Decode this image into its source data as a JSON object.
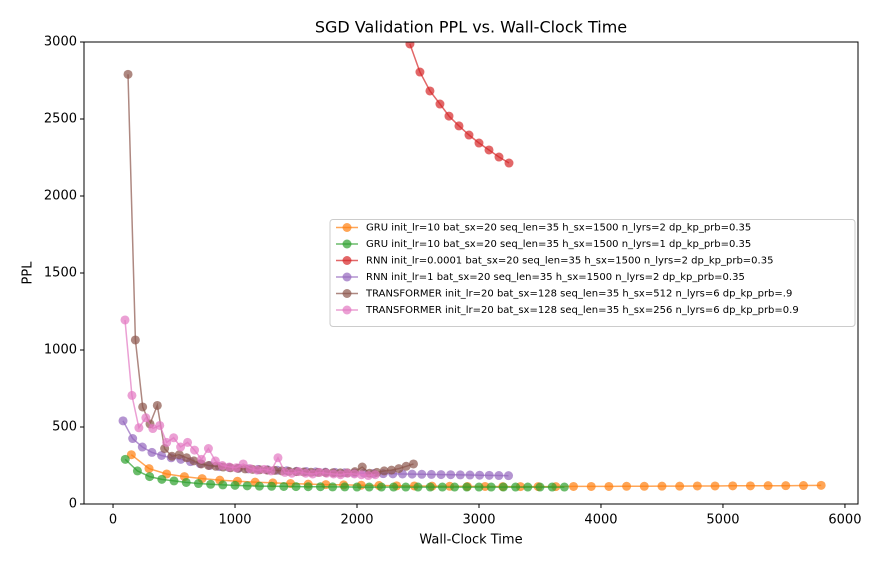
{
  "chart_data": {
    "type": "line",
    "title": "SGD Validation PPL vs. Wall-Clock Time",
    "x_label": "Wall-Clock Time",
    "y_label": "PPL",
    "xlim": [
      -238,
      6107
    ],
    "ylim": [
      0,
      3000
    ],
    "xticks": [
      0,
      1000,
      2000,
      3000,
      4000,
      5000,
      6000
    ],
    "yticks": [
      0,
      500,
      1000,
      1500,
      2000,
      2500,
      3000
    ],
    "legend": "center right",
    "series": [
      {
        "name": "GRU init_lr=10 bat_sx=20 seq_len=35 h_sx=1500 n_lyrs=2 dp_kp_prb=0.35",
        "color": "#ff7f0e",
        "x": [
          150,
          295,
          440,
          585,
          730,
          875,
          1020,
          1165,
          1310,
          1455,
          1600,
          1745,
          1890,
          2035,
          2180,
          2325,
          2470,
          2615,
          2760,
          2905,
          3050,
          3195,
          3340,
          3485,
          3630,
          3775,
          3920,
          4065,
          4210,
          4355,
          4500,
          4645,
          4790,
          4935,
          5080,
          5225,
          5370,
          5515,
          5660,
          5805
        ],
        "values": [
          320,
          230,
          195,
          178,
          165,
          155,
          148,
          142,
          137,
          133,
          129,
          126,
          124,
          122,
          120,
          118,
          117,
          116,
          115,
          114,
          114,
          113,
          113,
          113,
          113,
          114,
          114,
          114,
          115,
          115,
          116,
          116,
          117,
          117,
          118,
          118,
          119,
          119,
          120,
          121
        ]
      },
      {
        "name": "GRU init_lr=10 bat_sx=20 seq_len=35 h_sx=1500 n_lyrs=1 dp_kp_prb=0.35",
        "color": "#2ca02c",
        "x": [
          100,
          200,
          300,
          400,
          500,
          600,
          700,
          800,
          900,
          1000,
          1100,
          1200,
          1300,
          1400,
          1500,
          1600,
          1700,
          1800,
          1900,
          2000,
          2100,
          2200,
          2300,
          2400,
          2500,
          2600,
          2700,
          2800,
          2900,
          3000,
          3100,
          3200,
          3300,
          3400,
          3500,
          3600,
          3700
        ],
        "values": [
          290,
          215,
          178,
          160,
          150,
          140,
          133,
          128,
          124,
          121,
          118,
          116,
          115,
          114,
          113,
          112,
          112,
          111,
          111,
          110,
          110,
          110,
          110,
          110,
          110,
          110,
          110,
          110,
          110,
          110,
          110,
          110,
          110,
          110,
          110,
          110,
          110
        ]
      },
      {
        "name": "RNN init_lr=0.0001 bat_sx=20 seq_len=35 h_sx=1500 n_lyrs=2 dp_kp_prb=0.35",
        "color": "#d62728",
        "x": [
          2434,
          2516,
          2598,
          2680,
          2754,
          2836,
          2918,
          3000,
          3082,
          3164,
          3246
        ],
        "values": [
          2987,
          2805,
          2682,
          2597,
          2519,
          2455,
          2396,
          2344,
          2299,
          2253,
          2214
        ]
      },
      {
        "name": "RNN init_lr=1 bat_sx=20 seq_len=35 h_sx=1500 n_lyrs=2 dp_kp_prb=0.35",
        "color": "#9467bd",
        "x": [
          82,
          161,
          240,
          319,
          398,
          477,
          556,
          635,
          714,
          793,
          872,
          951,
          1030,
          1109,
          1188,
          1267,
          1346,
          1425,
          1504,
          1583,
          1662,
          1741,
          1820,
          1899,
          1978,
          2057,
          2136,
          2215,
          2294,
          2373,
          2452,
          2531,
          2610,
          2689,
          2768,
          2847,
          2926,
          3005,
          3084,
          3163,
          3242
        ],
        "values": [
          540,
          425,
          370,
          335,
          315,
          300,
          290,
          275,
          262,
          250,
          243,
          237,
          232,
          228,
          225,
          222,
          219,
          216,
          213,
          211,
          209,
          207,
          205,
          203,
          201,
          200,
          198,
          197,
          196,
          195,
          194,
          193,
          192,
          191,
          190,
          189,
          188,
          187,
          186,
          185,
          184
        ]
      },
      {
        "name": "TRANSFORMER init_lr=20 bat_sx=128 seq_len=35 h_sx=512 n_lyrs=6 dp_kp_prb=.9",
        "color": "#8c564b",
        "x": [
          123,
          183,
          243,
          303,
          363,
          423,
          483,
          543,
          603,
          663,
          723,
          783,
          843,
          903,
          963,
          1023,
          1083,
          1143,
          1203,
          1263,
          1323,
          1383,
          1443,
          1503,
          1563,
          1623,
          1683,
          1743,
          1803,
          1863,
          1923,
          1983,
          2043,
          2103,
          2163,
          2223,
          2283,
          2343,
          2403,
          2463
        ],
        "values": [
          2790,
          1065,
          630,
          520,
          640,
          360,
          310,
          320,
          300,
          280,
          260,
          250,
          245,
          240,
          235,
          232,
          228,
          225,
          222,
          220,
          218,
          215,
          212,
          210,
          208,
          206,
          205,
          204,
          203,
          202,
          202,
          210,
          240,
          200,
          205,
          215,
          220,
          230,
          245,
          260
        ]
      },
      {
        "name": "TRANSFORMER init_lr=20 bat_sx=128 seq_len=35 h_sx=256 n_lyrs=6 dp_kp_prb=0.9",
        "color": "#e377c2",
        "x": [
          98,
          155,
          212,
          269,
          326,
          383,
          440,
          497,
          554,
          611,
          668,
          725,
          782,
          839,
          896,
          953,
          1010,
          1067,
          1124,
          1181,
          1238,
          1295,
          1352,
          1409,
          1466,
          1523,
          1580,
          1637,
          1694,
          1751,
          1808,
          1865,
          1922,
          1979,
          2036,
          2093,
          2150
        ],
        "values": [
          1195,
          705,
          495,
          560,
          490,
          510,
          400,
          430,
          370,
          400,
          350,
          290,
          360,
          280,
          250,
          240,
          235,
          260,
          230,
          220,
          225,
          215,
          300,
          205,
          200,
          210,
          200,
          195,
          205,
          200,
          195,
          190,
          200,
          195,
          190,
          185,
          190
        ]
      }
    ]
  }
}
